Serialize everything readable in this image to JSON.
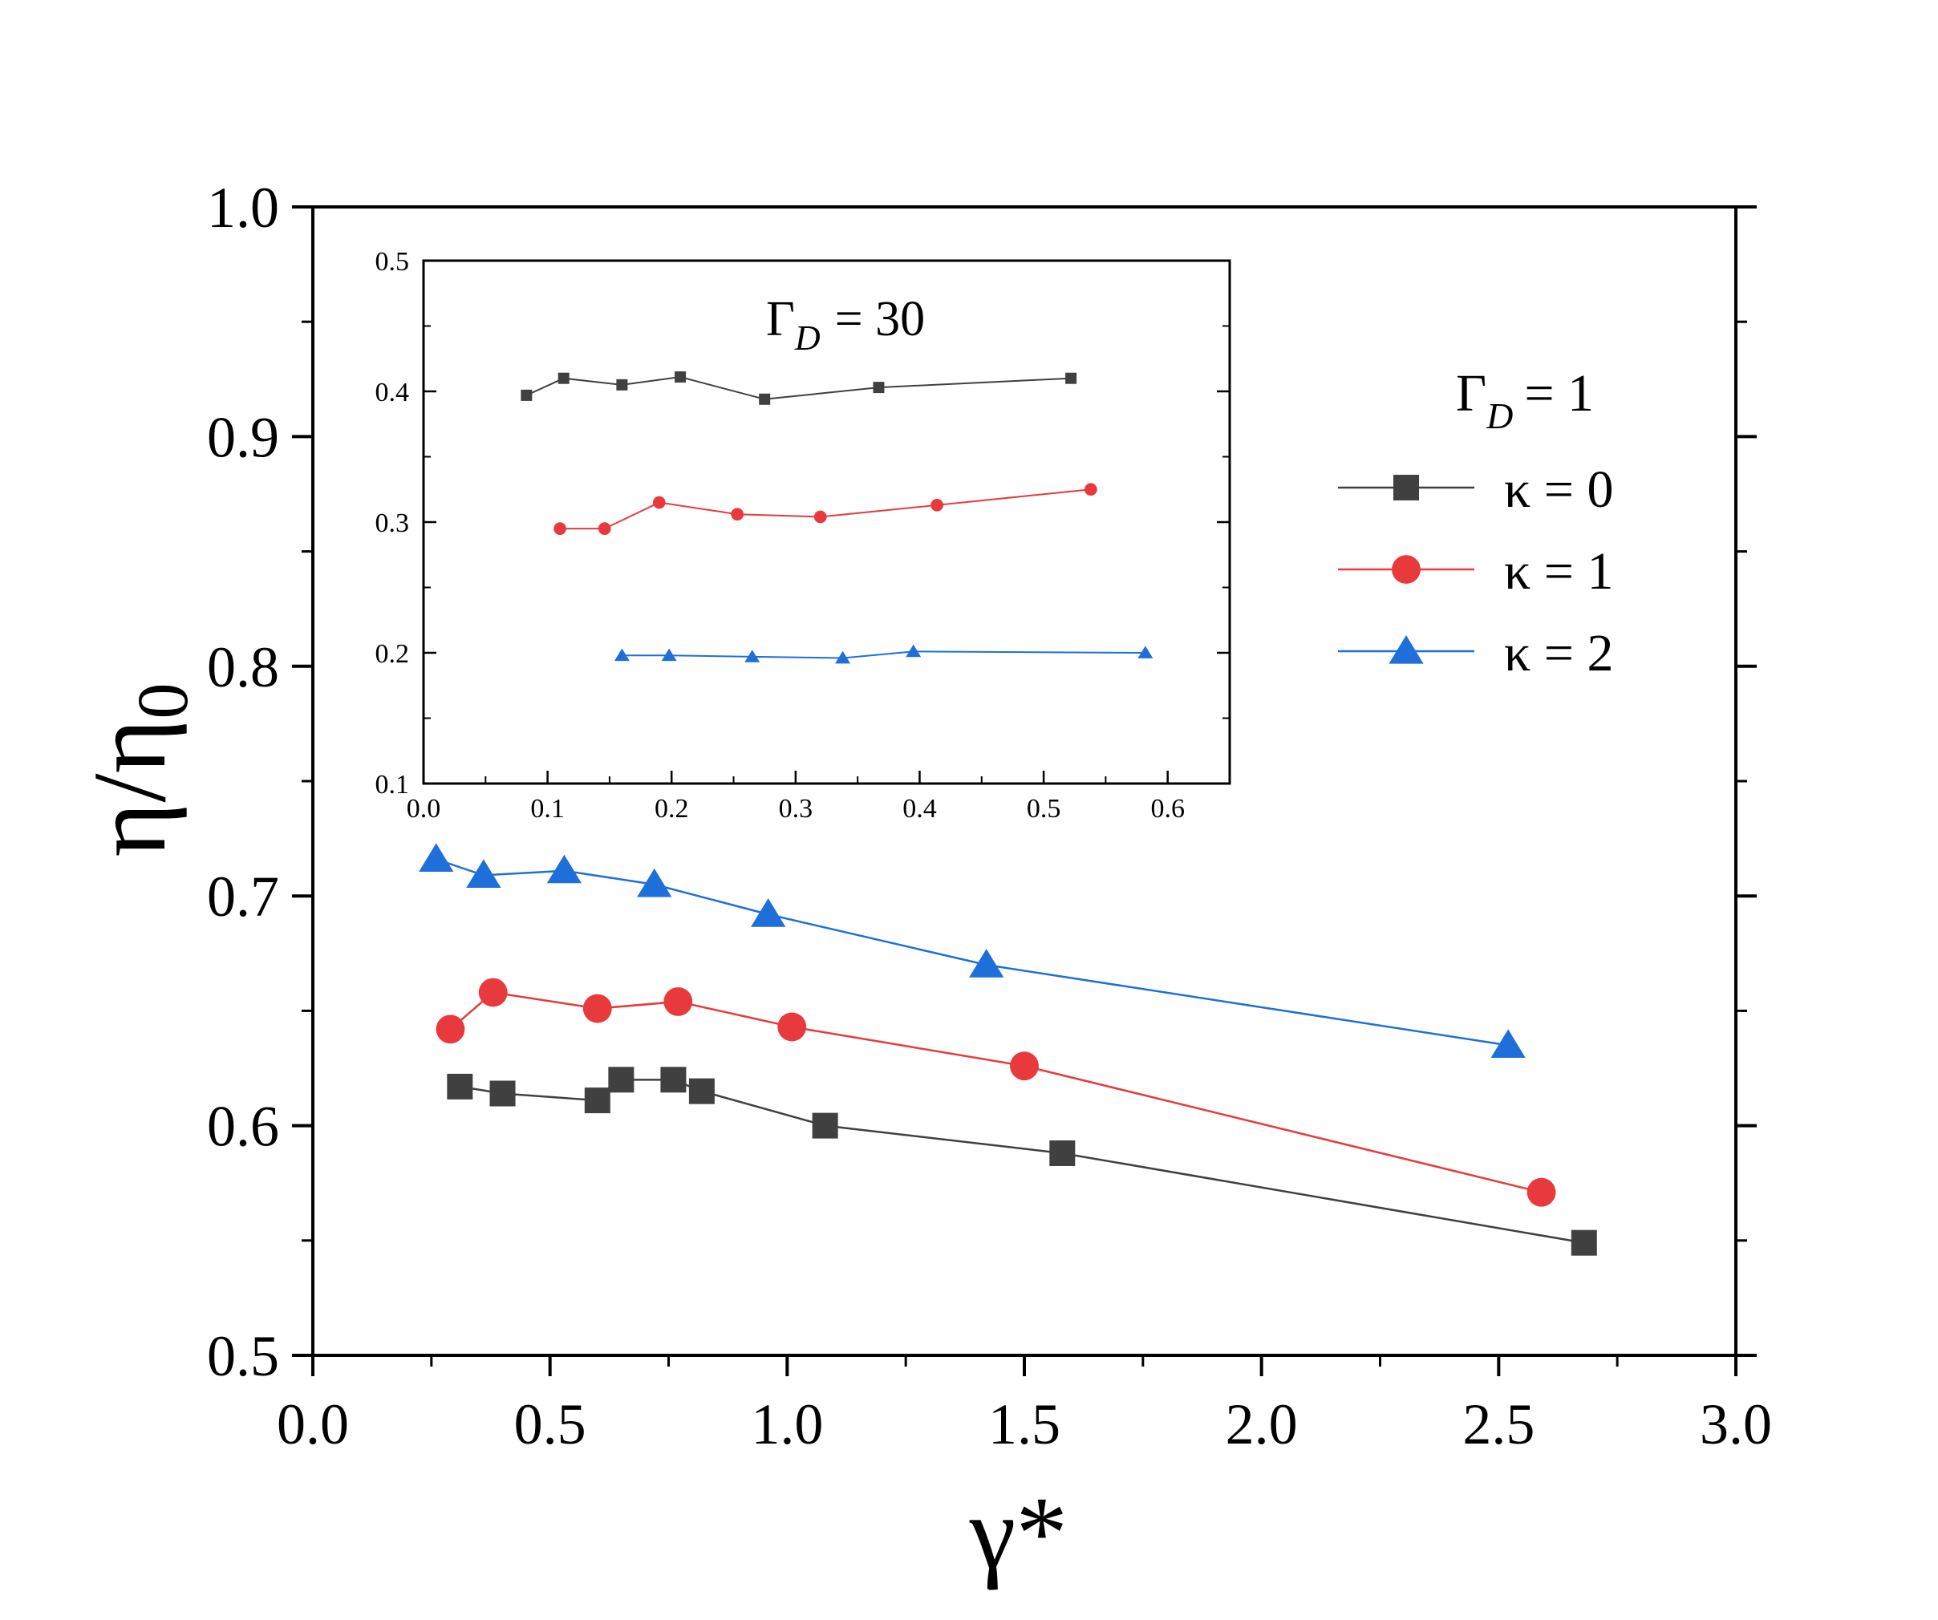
{
  "chart_data": [
    {
      "type": "line",
      "role": "main",
      "xlabel": "γ*",
      "ylabel": "η/η",
      "ylabel_sub": "0",
      "xlim": [
        0.0,
        3.0
      ],
      "ylim": [
        0.5,
        1.0
      ],
      "xticks": [
        0.0,
        0.5,
        1.0,
        1.5,
        2.0,
        2.5,
        3.0
      ],
      "xtick_labels": [
        "0.0",
        "0.5",
        "1.0",
        "1.5",
        "2.0",
        "2.5",
        "3.0"
      ],
      "yticks": [
        0.5,
        0.6,
        0.7,
        0.8,
        0.9,
        1.0
      ],
      "ytick_labels": [
        "0.5",
        "0.6",
        "0.7",
        "0.8",
        "0.9",
        "1.0"
      ],
      "legend_title": "Γ",
      "legend_title_sub": "D",
      "legend_title_value": "=  1",
      "legend_position": "top-right",
      "series": [
        {
          "name": "κ = 0",
          "color": "#404040",
          "marker": "square",
          "x": [
            0.31,
            0.4,
            0.6,
            0.65,
            0.76,
            0.82,
            1.08,
            1.58,
            2.68
          ],
          "y": [
            0.617,
            0.614,
            0.611,
            0.62,
            0.62,
            0.615,
            0.6,
            0.588,
            0.549
          ]
        },
        {
          "name": "κ = 1",
          "color": "#e8393c",
          "marker": "circle",
          "x": [
            0.29,
            0.38,
            0.6,
            0.77,
            1.01,
            1.5,
            2.59
          ],
          "y": [
            0.642,
            0.658,
            0.651,
            0.654,
            0.643,
            0.626,
            0.571
          ]
        },
        {
          "name": "κ = 2",
          "color": "#1e6fd9",
          "marker": "triangle",
          "x": [
            0.26,
            0.36,
            0.53,
            0.72,
            0.96,
            1.42,
            2.52
          ],
          "y": [
            0.716,
            0.709,
            0.711,
            0.705,
            0.692,
            0.67,
            0.635
          ]
        }
      ]
    },
    {
      "type": "line",
      "role": "inset",
      "title": "Γ",
      "title_sub": "D",
      "title_value": "= 30",
      "xlim": [
        0.0,
        0.65
      ],
      "ylim": [
        0.1,
        0.5
      ],
      "xticks": [
        0.0,
        0.1,
        0.2,
        0.3,
        0.4,
        0.5,
        0.6
      ],
      "xtick_labels": [
        "0.0",
        "0.1",
        "0.2",
        "0.3",
        "0.4",
        "0.5",
        "0.6"
      ],
      "yticks": [
        0.1,
        0.2,
        0.3,
        0.4,
        0.5
      ],
      "ytick_labels": [
        "0.1",
        "0.2",
        "0.3",
        "0.4",
        "0.5"
      ],
      "series": [
        {
          "name": "κ = 0",
          "color": "#404040",
          "marker": "square",
          "x": [
            0.083,
            0.113,
            0.16,
            0.207,
            0.275,
            0.367,
            0.522
          ],
          "y": [
            0.397,
            0.41,
            0.405,
            0.411,
            0.394,
            0.403,
            0.41
          ]
        },
        {
          "name": "κ = 1",
          "color": "#e8393c",
          "marker": "circle",
          "x": [
            0.11,
            0.146,
            0.19,
            0.253,
            0.32,
            0.414,
            0.538
          ],
          "y": [
            0.295,
            0.295,
            0.315,
            0.306,
            0.304,
            0.313,
            0.325
          ]
        },
        {
          "name": "κ = 2",
          "color": "#1e6fd9",
          "marker": "triangle",
          "x": [
            0.16,
            0.198,
            0.265,
            0.338,
            0.395,
            0.582
          ],
          "y": [
            0.198,
            0.198,
            0.197,
            0.196,
            0.201,
            0.2
          ]
        }
      ]
    }
  ]
}
